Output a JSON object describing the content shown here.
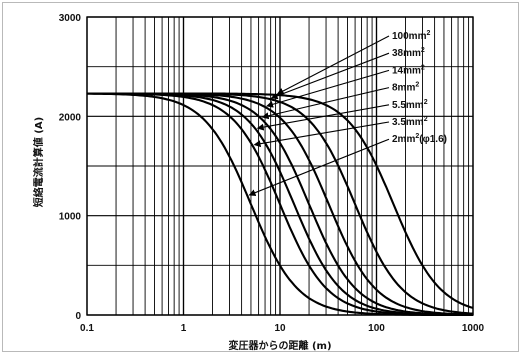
{
  "chart_data": {
    "type": "line",
    "title": "",
    "xlabel": "変圧器からの距離 (m)",
    "ylabel": "短絡電流計算値 (A)",
    "xscale": "log",
    "xlim": [
      0.1,
      1000
    ],
    "ylim": [
      0,
      3000
    ],
    "x_ticks": [
      "0.1",
      "1",
      "10",
      "100",
      "1000"
    ],
    "y_ticks": [
      "0",
      "1000",
      "2000",
      "3000"
    ],
    "grid": true,
    "legend_position": "upper-right",
    "series": [
      {
        "name": "100mm²",
        "base": "100mm",
        "sup": "2",
        "x_half": 150,
        "arrow_x": 9,
        "points": [
          [
            0.1,
            2230
          ],
          [
            1,
            2230
          ],
          [
            3,
            2220
          ],
          [
            5,
            2200
          ],
          [
            10,
            2130
          ],
          [
            20,
            2000
          ],
          [
            50,
            1600
          ],
          [
            100,
            1200
          ],
          [
            200,
            780
          ],
          [
            500,
            420
          ],
          [
            1000,
            230
          ]
        ]
      },
      {
        "name": "38mm²",
        "base": "38mm",
        "sup": "2",
        "x_half": 60,
        "arrow_x": 7.8,
        "points": [
          [
            0.1,
            2230
          ],
          [
            1,
            2225
          ],
          [
            3,
            2190
          ],
          [
            5,
            2150
          ],
          [
            10,
            2000
          ],
          [
            20,
            1770
          ],
          [
            50,
            1120
          ],
          [
            100,
            650
          ],
          [
            200,
            350
          ],
          [
            500,
            130
          ],
          [
            1000,
            65
          ]
        ]
      },
      {
        "name": "14mm²",
        "base": "14mm",
        "sup": "2",
        "x_half": 32,
        "arrow_x": 7,
        "points": [
          [
            0.1,
            2230
          ],
          [
            1,
            2210
          ],
          [
            3,
            2100
          ],
          [
            5,
            1950
          ],
          [
            10,
            1700
          ],
          [
            20,
            1300
          ],
          [
            50,
            720
          ],
          [
            100,
            400
          ],
          [
            200,
            200
          ],
          [
            500,
            80
          ],
          [
            1000,
            40
          ]
        ]
      },
      {
        "name": "8mm²",
        "base": "8mm",
        "sup": "2",
        "x_half": 20,
        "arrow_x": 6.3,
        "points": [
          [
            0.1,
            2230
          ],
          [
            1,
            2180
          ],
          [
            3,
            1980
          ],
          [
            5,
            1780
          ],
          [
            10,
            1400
          ],
          [
            20,
            1000
          ],
          [
            50,
            480
          ],
          [
            100,
            250
          ],
          [
            200,
            130
          ],
          [
            500,
            50
          ],
          [
            1000,
            25
          ]
        ]
      },
      {
        "name": "5.5mm²",
        "base": "5.5mm",
        "sup": "2",
        "x_half": 14,
        "arrow_x": 5.6,
        "points": [
          [
            0.1,
            2230
          ],
          [
            1,
            2150
          ],
          [
            3,
            1850
          ],
          [
            5,
            1600
          ],
          [
            10,
            1200
          ],
          [
            20,
            780
          ],
          [
            50,
            350
          ],
          [
            100,
            180
          ],
          [
            200,
            90
          ],
          [
            500,
            40
          ],
          [
            1000,
            20
          ]
        ]
      },
      {
        "name": "3.5mm²",
        "base": "3.5mm",
        "sup": "2",
        "x_half": 10,
        "arrow_x": 5.2,
        "points": [
          [
            0.1,
            2230
          ],
          [
            1,
            2100
          ],
          [
            3,
            1700
          ],
          [
            5,
            1400
          ],
          [
            10,
            1000
          ],
          [
            20,
            600
          ],
          [
            50,
            260
          ],
          [
            100,
            130
          ],
          [
            200,
            65
          ],
          [
            500,
            30
          ],
          [
            1000,
            15
          ]
        ]
      },
      {
        "name": "2mm²(φ1.6)",
        "base": "2mm",
        "sup": "2",
        "suffix": "(φ1.6)",
        "x_half": 5,
        "arrow_x": 4.6,
        "points": [
          [
            0.1,
            2230
          ],
          [
            1,
            2000
          ],
          [
            3,
            1400
          ],
          [
            5,
            1100
          ],
          [
            10,
            700
          ],
          [
            20,
            380
          ],
          [
            50,
            150
          ],
          [
            100,
            80
          ],
          [
            200,
            40
          ],
          [
            500,
            15
          ],
          [
            1000,
            8
          ]
        ]
      }
    ]
  }
}
